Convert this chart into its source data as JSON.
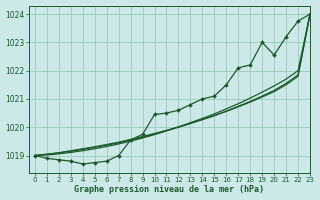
{
  "title": "Graphe pression niveau de la mer (hPa)",
  "bg_color": "#cce8e8",
  "grid_color": "#99ccbb",
  "line_color": "#1a5c2a",
  "xlim": [
    -0.5,
    23
  ],
  "ylim": [
    1018.4,
    1024.3
  ],
  "yticks": [
    1019,
    1020,
    1021,
    1022,
    1023,
    1024
  ],
  "xticks": [
    0,
    1,
    2,
    3,
    4,
    5,
    6,
    7,
    8,
    9,
    10,
    11,
    12,
    13,
    14,
    15,
    16,
    17,
    18,
    19,
    20,
    21,
    22,
    23
  ],
  "series": {
    "main": [
      1019.0,
      1018.9,
      1018.85,
      1018.8,
      1018.7,
      1018.75,
      1018.8,
      1019.0,
      1019.55,
      1019.75,
      1020.45,
      1020.5,
      1020.6,
      1020.8,
      1021.0,
      1021.1,
      1021.5,
      1022.1,
      1022.2,
      1023.0,
      1022.55,
      1023.2,
      1023.75,
      1024.0
    ],
    "linear1": [
      1019.0,
      1019.05,
      1019.1,
      1019.17,
      1019.24,
      1019.31,
      1019.39,
      1019.47,
      1019.57,
      1019.67,
      1019.78,
      1019.89,
      1020.01,
      1020.14,
      1020.27,
      1020.41,
      1020.56,
      1020.72,
      1020.89,
      1021.07,
      1021.26,
      1021.5,
      1021.8,
      1024.0
    ],
    "linear2": [
      1019.0,
      1019.04,
      1019.09,
      1019.15,
      1019.22,
      1019.29,
      1019.37,
      1019.45,
      1019.55,
      1019.65,
      1019.76,
      1019.88,
      1020.0,
      1020.13,
      1020.27,
      1020.41,
      1020.57,
      1020.74,
      1020.91,
      1021.1,
      1021.3,
      1021.55,
      1021.85,
      1024.0
    ],
    "linear3": [
      1019.0,
      1019.02,
      1019.06,
      1019.11,
      1019.17,
      1019.24,
      1019.32,
      1019.41,
      1019.51,
      1019.62,
      1019.74,
      1019.87,
      1020.01,
      1020.16,
      1020.31,
      1020.47,
      1020.65,
      1020.83,
      1021.03,
      1021.24,
      1021.46,
      1021.7,
      1022.0,
      1024.0
    ]
  }
}
